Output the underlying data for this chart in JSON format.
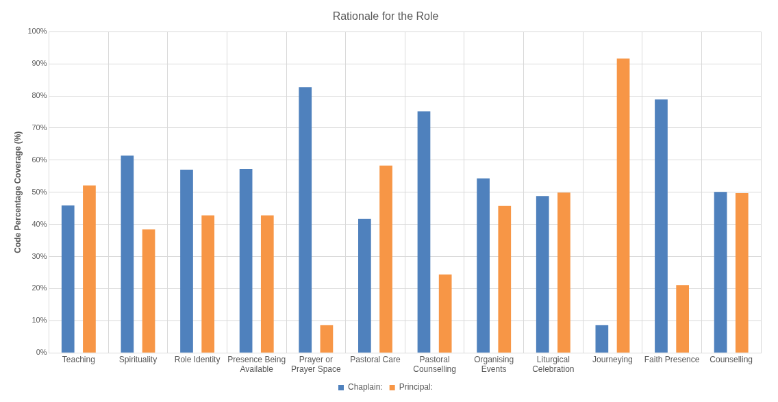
{
  "chart_data": {
    "type": "bar",
    "title": "Rationale for the Role",
    "ylabel": "Code Percentage Coverage (%)",
    "categories": [
      "Teaching",
      "Spirituality",
      "Role Identity",
      "Presence Being Available",
      "Prayer or Prayer Space",
      "Pastoral Care",
      "Pastoral Counselling",
      "Organising Events",
      "Liturgical Celebration",
      "Journeying",
      "Faith Presence",
      "Counselling"
    ],
    "series": [
      {
        "name": "Chaplain:",
        "color": "#4f81bd",
        "values": [
          45.9,
          61.4,
          57.0,
          57.2,
          82.7,
          41.7,
          75.2,
          54.3,
          48.8,
          8.6,
          78.9,
          50.1
        ]
      },
      {
        "name": "Principal:",
        "color": "#f79646",
        "values": [
          52.1,
          38.4,
          42.8,
          42.8,
          8.6,
          58.3,
          24.4,
          45.7,
          49.9,
          91.6,
          21.1,
          49.7
        ]
      }
    ],
    "ylim": [
      0,
      100
    ],
    "yticks": [
      {
        "value": 0,
        "label": "0%"
      },
      {
        "value": 10,
        "label": "10%"
      },
      {
        "value": 20,
        "label": "20%"
      },
      {
        "value": 30,
        "label": "30%"
      },
      {
        "value": 40,
        "label": "40%"
      },
      {
        "value": 50,
        "label": "50%"
      },
      {
        "value": 60,
        "label": "60%"
      },
      {
        "value": 70,
        "label": "70%"
      },
      {
        "value": 80,
        "label": "80%"
      },
      {
        "value": 90,
        "label": "90%"
      },
      {
        "value": 100,
        "label": "100%"
      }
    ],
    "grid": true,
    "legend": "bottom"
  }
}
